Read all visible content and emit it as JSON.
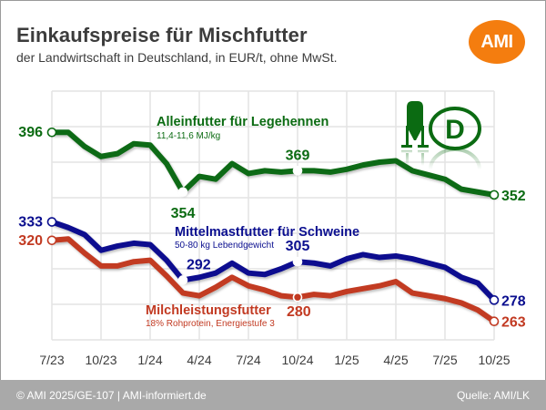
{
  "header": {
    "title": "Einkaufspreise für Mischfutter",
    "subtitle": "der Landwirtschaft in Deutschland, in EUR/t, ohne MwSt.",
    "logo_text": "AMI",
    "logo_color": "#f47d0f"
  },
  "footer": {
    "left": "© AMI 2025/GE-107 | AMI-informiert.de",
    "right": "Quelle: AMI/LK"
  },
  "icons": [
    "silo-icon",
    "germany-d-badge-icon"
  ],
  "chart_data": {
    "type": "line",
    "title": "Einkaufspreise für Mischfutter",
    "subtitle": "der Landwirtschaft in Deutschland, in EUR/t, ohne MwSt.",
    "xlabel": "",
    "ylabel": "EUR/t",
    "ylim": [
      250,
      425
    ],
    "ygrid_step": 25,
    "grid": true,
    "y_tick_labels_shown": false,
    "x_tick_labels": [
      "7/23",
      "10/23",
      "1/24",
      "4/24",
      "7/24",
      "10/24",
      "1/25",
      "4/25",
      "7/25",
      "10/25"
    ],
    "x": [
      "7/23",
      "8/23",
      "9/23",
      "10/23",
      "11/23",
      "12/23",
      "1/24",
      "2/24",
      "3/24",
      "4/24",
      "5/24",
      "6/24",
      "7/24",
      "8/24",
      "9/24",
      "10/24",
      "11/24",
      "12/24",
      "1/25",
      "2/25",
      "3/25",
      "4/25",
      "5/25",
      "6/25",
      "7/25",
      "8/25",
      "9/25",
      "10/25"
    ],
    "series": [
      {
        "name": "Alleinfutter für Legehennen",
        "note": "11,4-11,6 MJ/kg",
        "color": "#0b6b12",
        "values": [
          396,
          396,
          386,
          379,
          381,
          388,
          387,
          374,
          354,
          365,
          363,
          374,
          367,
          369,
          368,
          369,
          369,
          368,
          370,
          373,
          375,
          376,
          369,
          366,
          363,
          356,
          354,
          352
        ],
        "labeled_points": [
          {
            "index": 0,
            "label": "396"
          },
          {
            "index": 8,
            "label": "354"
          },
          {
            "index": 15,
            "label": "369"
          },
          {
            "index": 27,
            "label": "352"
          }
        ]
      },
      {
        "name": "Mittelmastfutter für Schweine",
        "note": "50-80 kg Lebendgewicht",
        "color": "#0b0f8f",
        "values": [
          333,
          329,
          324,
          313,
          316,
          318,
          317,
          306,
          292,
          294,
          297,
          304,
          297,
          296,
          300,
          305,
          304,
          302,
          307,
          310,
          308,
          309,
          307,
          304,
          301,
          294,
          290,
          278
        ],
        "labeled_points": [
          {
            "index": 0,
            "label": "333"
          },
          {
            "index": 8,
            "label": "292"
          },
          {
            "index": 15,
            "label": "305"
          },
          {
            "index": 27,
            "label": "278"
          }
        ]
      },
      {
        "name": "Milchleistungsfutter",
        "note": "18% Rohprotein, Energiestufe 3",
        "color": "#c23a22",
        "values": [
          320,
          321,
          311,
          302,
          302,
          305,
          306,
          295,
          283,
          281,
          287,
          294,
          288,
          285,
          281,
          280,
          282,
          281,
          284,
          286,
          288,
          291,
          283,
          281,
          279,
          276,
          271,
          263
        ],
        "labeled_points": [
          {
            "index": 0,
            "label": "320"
          },
          {
            "index": 15,
            "label": "280"
          },
          {
            "index": 27,
            "label": "263"
          }
        ]
      }
    ]
  }
}
